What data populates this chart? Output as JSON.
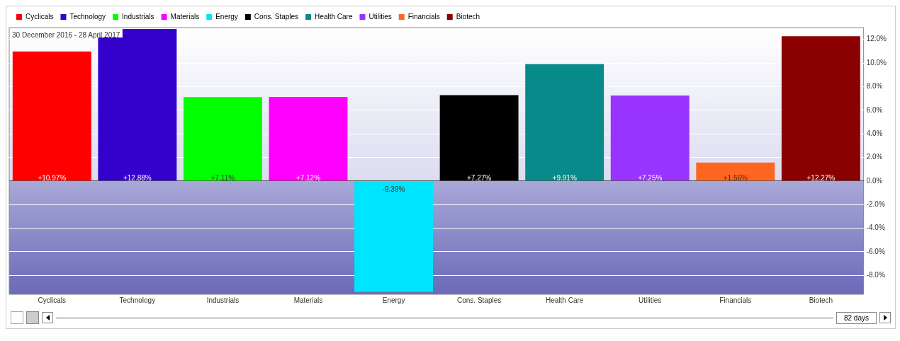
{
  "chart_data": {
    "type": "bar",
    "categories": [
      "Cyclicals",
      "Technology",
      "Industrials",
      "Materials",
      "Energy",
      "Cons. Staples",
      "Health Care",
      "Utilities",
      "Financials",
      "Biotech"
    ],
    "series": [
      {
        "name": "Cyclicals",
        "color": "#ff0000",
        "values": [
          10.97,
          null,
          null,
          null,
          null,
          null,
          null,
          null,
          null,
          null
        ],
        "value_labels": [
          "+10.97%",
          null,
          null,
          null,
          null,
          null,
          null,
          null,
          null,
          null
        ]
      },
      {
        "name": "Technology",
        "color": "#3300cc",
        "values": [
          null,
          12.88,
          null,
          null,
          null,
          null,
          null,
          null,
          null,
          null
        ],
        "value_labels": [
          null,
          "+12.88%",
          null,
          null,
          null,
          null,
          null,
          null,
          null,
          null
        ]
      },
      {
        "name": "Industrials",
        "color": "#00ff00",
        "values": [
          null,
          null,
          7.11,
          null,
          null,
          null,
          null,
          null,
          null,
          null
        ],
        "value_labels": [
          null,
          null,
          "+7.11%",
          null,
          null,
          null,
          null,
          null,
          null,
          null
        ]
      },
      {
        "name": "Materials",
        "color": "#ff00ff",
        "values": [
          null,
          null,
          null,
          7.12,
          null,
          null,
          null,
          null,
          null,
          null
        ],
        "value_labels": [
          null,
          null,
          null,
          "+7.12%",
          null,
          null,
          null,
          null,
          null,
          null
        ]
      },
      {
        "name": "Energy",
        "color": "#00e5ff",
        "values": [
          null,
          null,
          null,
          null,
          -9.39,
          null,
          null,
          null,
          null,
          null
        ],
        "value_labels": [
          null,
          null,
          null,
          null,
          "-9.39%",
          null,
          null,
          null,
          null,
          null
        ]
      },
      {
        "name": "Cons. Staples",
        "color": "#000000",
        "values": [
          null,
          null,
          null,
          null,
          null,
          7.27,
          null,
          null,
          null,
          null
        ],
        "value_labels": [
          null,
          null,
          null,
          null,
          null,
          "+7.27%",
          null,
          null,
          null,
          null
        ]
      },
      {
        "name": "Health Care",
        "color": "#088a8a",
        "values": [
          null,
          null,
          null,
          null,
          null,
          null,
          9.91,
          null,
          null,
          null
        ],
        "value_labels": [
          null,
          null,
          null,
          null,
          null,
          null,
          "+9.91%",
          null,
          null,
          null
        ]
      },
      {
        "name": "Utilities",
        "color": "#9933ff",
        "values": [
          null,
          null,
          null,
          null,
          null,
          null,
          null,
          7.25,
          null,
          null
        ],
        "value_labels": [
          null,
          null,
          null,
          null,
          null,
          null,
          null,
          "+7.25%",
          null,
          null
        ]
      },
      {
        "name": "Financials",
        "color": "#ff6622",
        "values": [
          null,
          null,
          null,
          null,
          null,
          null,
          null,
          null,
          1.56,
          null
        ],
        "value_labels": [
          null,
          null,
          null,
          null,
          null,
          null,
          null,
          null,
          "+1.56%",
          null
        ]
      },
      {
        "name": "Biotech",
        "color": "#8b0000",
        "values": [
          null,
          null,
          null,
          null,
          null,
          null,
          null,
          null,
          null,
          12.27
        ],
        "value_labels": [
          null,
          null,
          null,
          null,
          null,
          null,
          null,
          null,
          null,
          "+12.27%"
        ]
      }
    ],
    "stacked": true,
    "ylim": [
      -9.6,
      13.0
    ],
    "yticks": [
      {
        "value": -8,
        "label": "-8.0%"
      },
      {
        "value": -6,
        "label": "-6.0%"
      },
      {
        "value": -4,
        "label": "-4.0%"
      },
      {
        "value": -2,
        "label": "-2.0%"
      },
      {
        "value": 0,
        "label": "0.0%"
      },
      {
        "value": 2,
        "label": "2.0%"
      },
      {
        "value": 4,
        "label": "4.0%"
      },
      {
        "value": 6,
        "label": "6.0%"
      },
      {
        "value": 8,
        "label": "8.0%"
      },
      {
        "value": 10,
        "label": "10.0%"
      },
      {
        "value": 12,
        "label": "12.0%"
      }
    ],
    "grid": "y",
    "legend": "top left",
    "annotations": [
      "30 December 2016 - 28 April 2017",
      "82 days"
    ]
  }
}
